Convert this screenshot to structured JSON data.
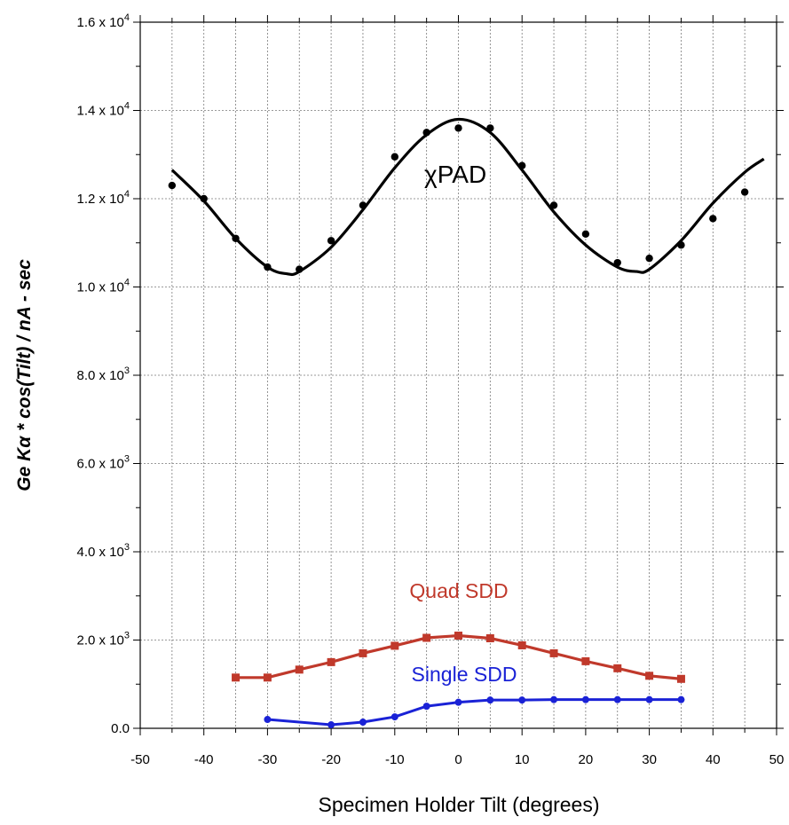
{
  "chart_data": {
    "type": "line",
    "xlabel": "Specimen Holder Tilt (degrees)",
    "ylabel": "Ge Kα * cos(Tilt) / nA - sec",
    "xlim": [
      -50,
      50
    ],
    "ylim": [
      0,
      16000
    ],
    "x_ticks": [
      -50,
      -40,
      -30,
      -20,
      -10,
      0,
      10,
      20,
      30,
      40,
      50
    ],
    "y_ticks": [
      {
        "value": 0,
        "label": "0.0"
      },
      {
        "value": 2000,
        "label": "2.0 x 10",
        "exp": "3"
      },
      {
        "value": 4000,
        "label": "4.0 x 10",
        "exp": "3"
      },
      {
        "value": 6000,
        "label": "6.0 x 10",
        "exp": "3"
      },
      {
        "value": 8000,
        "label": "8.0 x 10",
        "exp": "3"
      },
      {
        "value": 10000,
        "label": "1.0 x 10",
        "exp": "4"
      },
      {
        "value": 12000,
        "label": "1.2 x 10",
        "exp": "4"
      },
      {
        "value": 14000,
        "label": "1.4 x 10",
        "exp": "4"
      },
      {
        "value": 16000,
        "label": "1.6 x 10",
        "exp": "4"
      }
    ],
    "grid": true,
    "series": [
      {
        "name": "χPAD",
        "color": "#000000",
        "points": {
          "x": [
            -45,
            -40,
            -35,
            -30,
            -25,
            -20,
            -15,
            -10,
            -5,
            0,
            5,
            10,
            15,
            20,
            25,
            30,
            35,
            40,
            45
          ],
          "y": [
            12300,
            12000,
            11100,
            10450,
            10400,
            11050,
            11850,
            12950,
            13500,
            13600,
            13600,
            12750,
            11850,
            11200,
            10550,
            10650,
            10950,
            11550,
            12150
          ]
        },
        "fit": {
          "x": [
            -45,
            -40,
            -35,
            -30,
            -27,
            -25,
            -20,
            -15,
            -10,
            -5,
            0,
            5,
            10,
            15,
            20,
            25,
            28,
            30,
            35,
            40,
            45,
            48
          ],
          "y": [
            12650,
            11950,
            11100,
            10450,
            10300,
            10350,
            10900,
            11750,
            12700,
            13450,
            13800,
            13500,
            12650,
            11700,
            10950,
            10450,
            10350,
            10400,
            11050,
            11900,
            12600,
            12900
          ]
        }
      },
      {
        "name": "Quad SDD",
        "color": "#c0392b",
        "points": {
          "x": [
            -35,
            -30,
            -25,
            -20,
            -15,
            -10,
            -5,
            0,
            5,
            10,
            15,
            20,
            25,
            30,
            35
          ],
          "y": [
            1150,
            1150,
            1330,
            1500,
            1700,
            1870,
            2050,
            2100,
            2040,
            1880,
            1700,
            1520,
            1360,
            1190,
            1120
          ]
        }
      },
      {
        "name": "Single SDD",
        "color": "#1a22d6",
        "points": {
          "x": [
            -30,
            -20,
            -15,
            -10,
            -5,
            0,
            5,
            10,
            15,
            20,
            25,
            30,
            35
          ],
          "y": [
            200,
            80,
            140,
            260,
            500,
            590,
            640,
            640,
            650,
            650,
            650,
            650,
            650
          ]
        }
      }
    ]
  }
}
